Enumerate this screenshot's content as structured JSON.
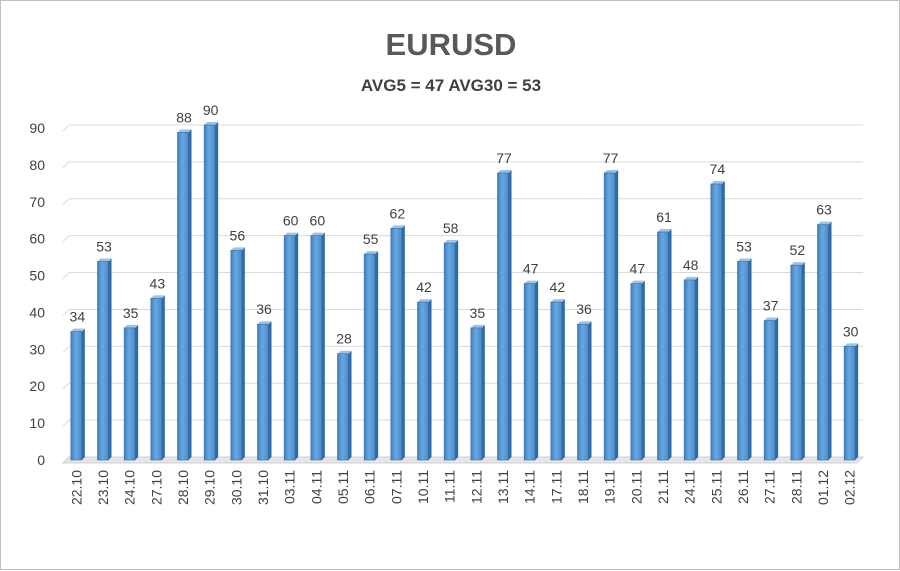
{
  "chart_data": {
    "type": "bar",
    "title": "EURUSD",
    "subtitle": "AVG5 = 47 AVG30 = 53",
    "categories": [
      "22.10",
      "23.10",
      "24.10",
      "27.10",
      "28.10",
      "29.10",
      "30.10",
      "31.10",
      "03.11",
      "04.11",
      "05.11",
      "06.11",
      "07.11",
      "10.11",
      "11.11",
      "12.11",
      "13.11",
      "14.11",
      "17.11",
      "18.11",
      "19.11",
      "20.11",
      "21.11",
      "24.11",
      "25.11",
      "26.11",
      "27.11",
      "28.11",
      "01.12",
      "02.12"
    ],
    "values": [
      34,
      53,
      35,
      43,
      88,
      90,
      56,
      36,
      60,
      60,
      28,
      55,
      62,
      42,
      58,
      35,
      77,
      47,
      42,
      36,
      77,
      47,
      61,
      48,
      74,
      53,
      37,
      52,
      63,
      30
    ],
    "ylim": [
      0,
      90
    ],
    "yticks": [
      0,
      10,
      20,
      30,
      40,
      50,
      60,
      70,
      80,
      90
    ],
    "grid": true,
    "bar_color": "#5b9bd5",
    "bar_edge_color": "#2e6da4",
    "bar_top_color": "#9dc3e6"
  }
}
